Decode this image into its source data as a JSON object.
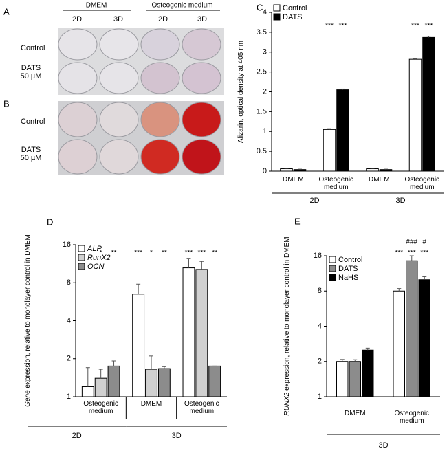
{
  "photos": {
    "A": {
      "letter": "A",
      "header_left": "DMEM",
      "header_right": "Osteogenic medium",
      "columns": [
        "2D",
        "3D",
        "2D",
        "3D"
      ],
      "rows": [
        "Control",
        "DATS 50 µM"
      ]
    },
    "B": {
      "letter": "B",
      "rows": [
        "Control",
        "DATS 50 µM"
      ]
    }
  },
  "chart_data": [
    {
      "type": "bar",
      "letter": "C",
      "ylabel": "Alizarin, optical density at 405 nm",
      "categories": [
        "DMEM",
        "Osteogenic medium",
        "DMEM",
        "Osteogenic medium"
      ],
      "groups": [
        {
          "label": "2D",
          "categories": [
            0,
            1
          ]
        },
        {
          "label": "3D",
          "categories": [
            2,
            3
          ]
        }
      ],
      "series": [
        {
          "name": "Control",
          "color": "#ffffff",
          "values": [
            0.06,
            1.05,
            0.06,
            2.82
          ],
          "errors": [
            0.01,
            0.02,
            0.01,
            0.02
          ],
          "significance": [
            null,
            "***",
            null,
            "***"
          ]
        },
        {
          "name": "DATS",
          "color": "#000000",
          "values": [
            0.04,
            2.05,
            0.04,
            3.37
          ],
          "errors": [
            0.01,
            0.02,
            0.01,
            0.03
          ],
          "significance": [
            null,
            "***",
            null,
            "***"
          ]
        }
      ],
      "ylim": [
        0,
        4
      ],
      "yticks": [
        0,
        0.5,
        1,
        1.5,
        2,
        2.5,
        3,
        3.5,
        4
      ],
      "log_scale": false,
      "legend": "top-left"
    },
    {
      "type": "bar",
      "letter": "D",
      "ylabel_italic": "Gene",
      "ylabel": " expression, relative to monolayer control in DMEM",
      "categories": [
        "Osteogenic medium",
        "DMEM",
        "Osteogenic medium"
      ],
      "groups": [
        {
          "label": "2D",
          "categories": [
            0,
            0
          ]
        },
        {
          "label": "3D",
          "categories": [
            1,
            2
          ]
        }
      ],
      "series": [
        {
          "name": "ALP",
          "color": "#ffffff",
          "values": [
            1.2,
            6.5,
            10.5
          ],
          "errors": [
            0.5,
            1.3,
            2
          ],
          "significance": [
            null,
            "***",
            "***"
          ]
        },
        {
          "name": "RunX2",
          "color": "#d0d0d0",
          "values": [
            1.4,
            1.65,
            10.2
          ],
          "errors": [
            0.25,
            0.45,
            1.6
          ],
          "significance": [
            "*",
            "*",
            "***"
          ]
        },
        {
          "name": "OCN",
          "color": "#8c8c8c",
          "values": [
            1.75,
            1.67,
            1.75
          ],
          "errors": [
            0.17,
            0.06,
            0
          ],
          "significance": [
            "**",
            "**",
            "**"
          ]
        }
      ],
      "ylim": [
        1,
        16
      ],
      "yticks": [
        1,
        2,
        4,
        8,
        16
      ],
      "log_scale": true,
      "legend": "top-left"
    },
    {
      "type": "bar",
      "letter": "E",
      "ylabel_italic": "RUNX2",
      "ylabel": " expression, relative to monolayer control in DMEM",
      "categories": [
        "DMEM",
        "Osteogenic medium"
      ],
      "groups": [
        {
          "label": "3D",
          "categories": [
            0,
            1
          ]
        }
      ],
      "series": [
        {
          "name": "Control",
          "color": "#ffffff",
          "values": [
            2.0,
            8.0
          ],
          "errors": [
            0.08,
            0.4
          ],
          "significance": [
            null,
            "***"
          ]
        },
        {
          "name": "DATS",
          "color": "#8c8c8c",
          "values": [
            2.0,
            14.5
          ],
          "errors": [
            0.07,
            1.5
          ],
          "significance": [
            null,
            "***"
          ],
          "significance2": [
            null,
            "###"
          ]
        },
        {
          "name": "NaHS",
          "color": "#000000",
          "values": [
            2.5,
            10.0
          ],
          "errors": [
            0.1,
            0.6
          ],
          "significance": [
            null,
            "***"
          ],
          "significance2": [
            null,
            "#"
          ]
        }
      ],
      "ylim": [
        1,
        16
      ],
      "yticks": [
        1,
        2,
        4,
        8,
        16
      ],
      "log_scale": true,
      "legend": "top-left"
    }
  ]
}
